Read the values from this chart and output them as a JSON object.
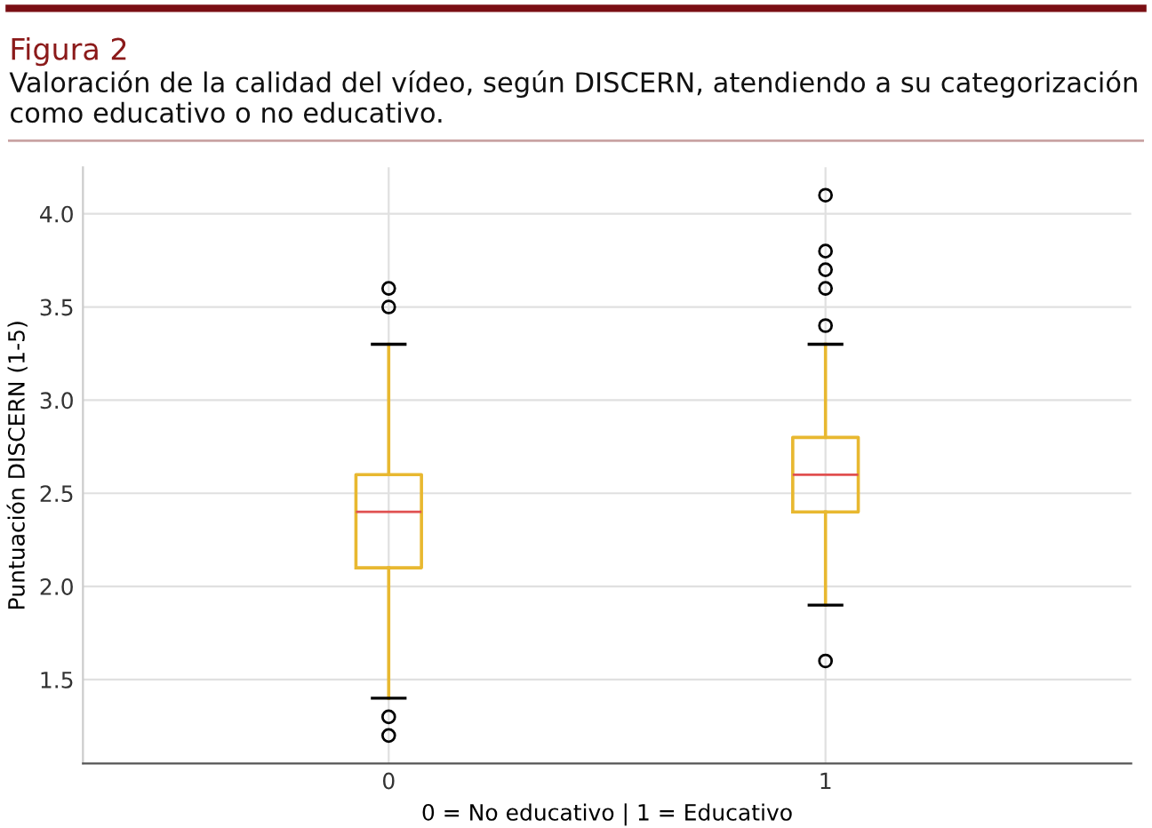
{
  "chart_data": {
    "type": "box",
    "title": "Figura 2",
    "subtitle": "Valoración de la calidad del vídeo, según DISCERN, atendiendo a su categorización como educativo o no educativo.",
    "xlabel": "0 = No educativo | 1 = Educativo",
    "ylabel": "Puntuación DISCERN (1-5)",
    "categories": [
      "0",
      "1"
    ],
    "series": [
      {
        "color": "#e8b830",
        "boxes": [
          {
            "low": 1.4,
            "q1": 2.1,
            "median": 2.4,
            "q3": 2.6,
            "high": 3.3,
            "outliers": [
              3.6,
              3.5,
              1.3,
              1.2
            ]
          },
          {
            "low": 1.9,
            "q1": 2.4,
            "median": 2.6,
            "q3": 2.8,
            "high": 3.3,
            "outliers": [
              4.1,
              3.8,
              3.7,
              3.6,
              3.4,
              1.6
            ]
          }
        ]
      }
    ],
    "ylim": [
      1.05,
      4.25
    ],
    "yticks": [
      {
        "value": 1.5,
        "label": "1.5"
      },
      {
        "value": 2,
        "label": "2.0"
      },
      {
        "value": 2.5,
        "label": "2.5"
      },
      {
        "value": 3,
        "label": "3.0"
      },
      {
        "value": 3.5,
        "label": "3.5"
      },
      {
        "value": 4,
        "label": "4.0"
      }
    ],
    "grid": true
  }
}
